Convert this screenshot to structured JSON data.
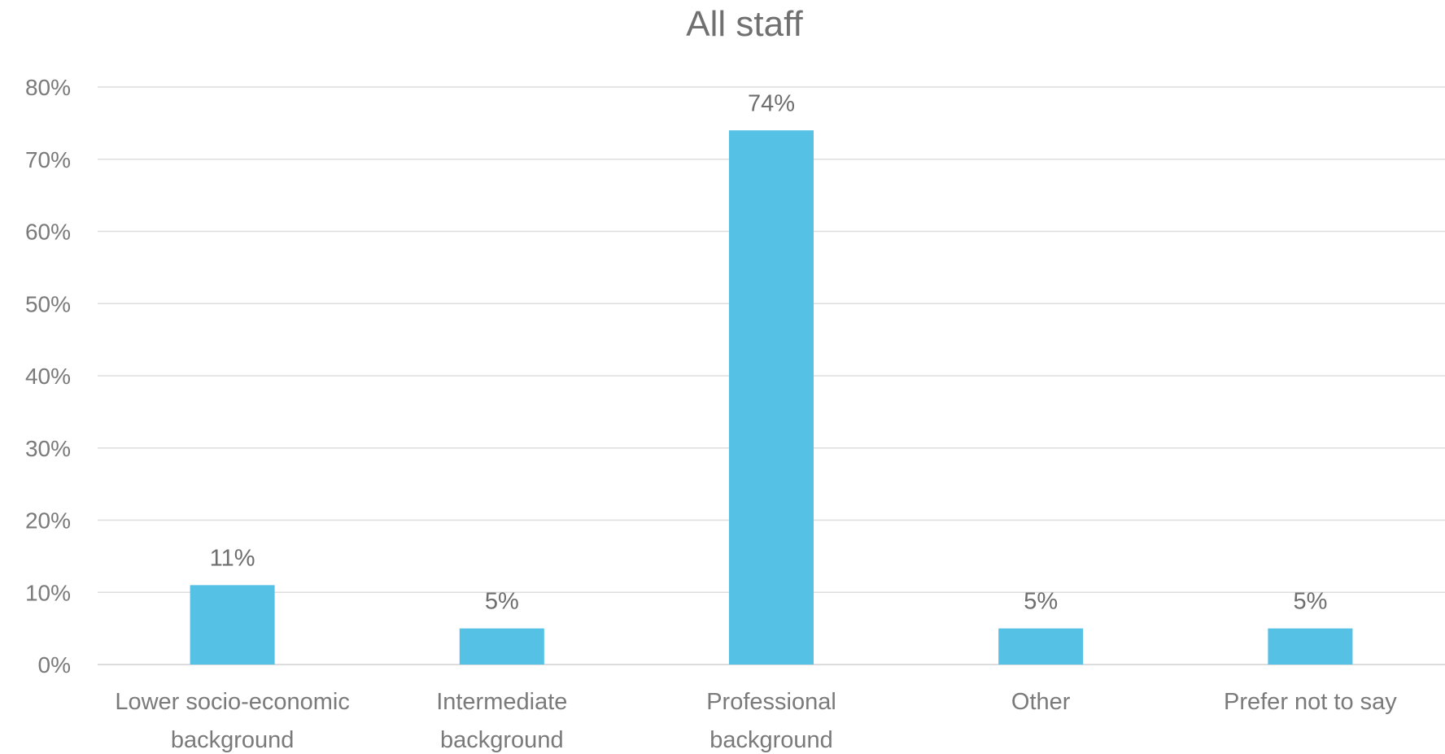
{
  "chart_data": {
    "type": "bar",
    "title": "All staff",
    "categories": [
      [
        "Lower socio-economic",
        "background"
      ],
      [
        "Intermediate",
        "background"
      ],
      [
        "Professional",
        "background"
      ],
      [
        "Other"
      ],
      [
        "Prefer not to say"
      ]
    ],
    "values": [
      11,
      5,
      74,
      5,
      5
    ],
    "data_labels": [
      "11%",
      "5%",
      "74%",
      "5%",
      "5%"
    ],
    "ylim": [
      0,
      80
    ],
    "yticks": [
      0,
      10,
      20,
      30,
      40,
      50,
      60,
      70,
      80
    ],
    "ytick_labels": [
      "0%",
      "10%",
      "20%",
      "30%",
      "40%",
      "50%",
      "60%",
      "70%",
      "80%"
    ],
    "grid": true,
    "legend": "none",
    "bar_color": "#55c1e5"
  }
}
